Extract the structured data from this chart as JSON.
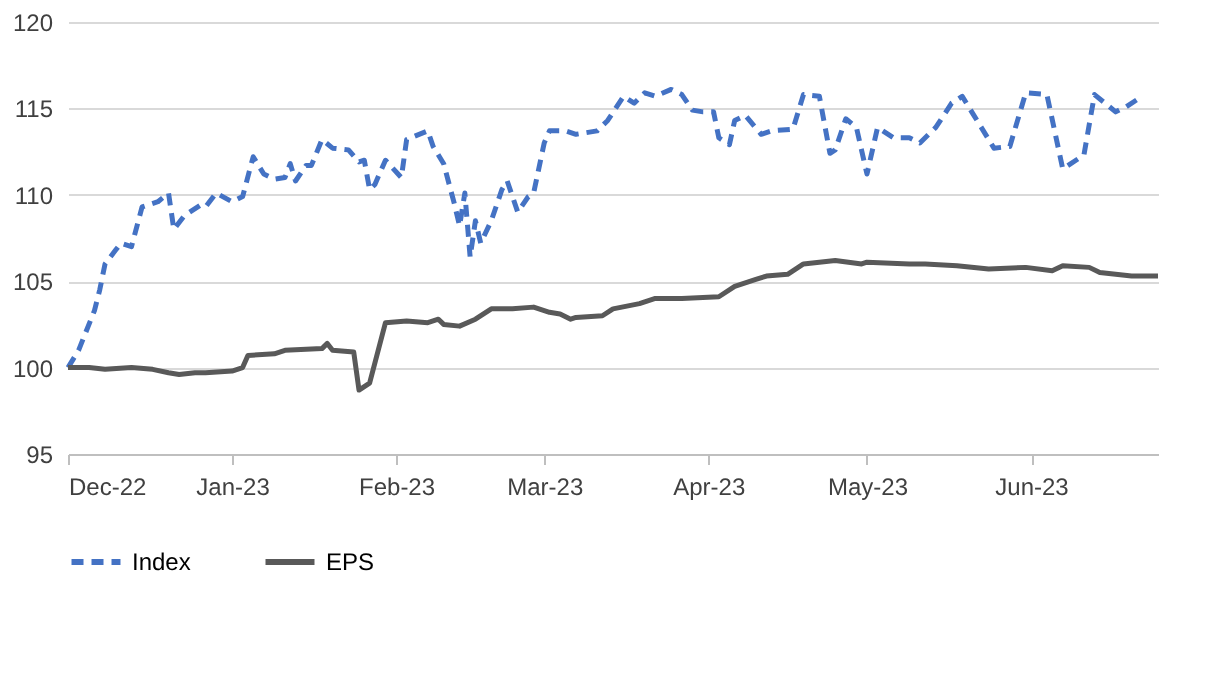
{
  "chart_data": {
    "type": "line",
    "xlim": [
      "2022-12-01",
      "2023-06-25"
    ],
    "xticks": [
      {
        "value": "2022-12-01",
        "label": "Dec-22"
      },
      {
        "value": "2023-01-01",
        "label": "Jan-23"
      },
      {
        "value": "2023-02-01",
        "label": "Feb-23"
      },
      {
        "value": "2023-03-01",
        "label": "Mar-23"
      },
      {
        "value": "2023-04-01",
        "label": "Apr-23"
      },
      {
        "value": "2023-05-01",
        "label": "May-23"
      },
      {
        "value": "2023-06-01",
        "label": "Jun-23"
      }
    ],
    "ylim": [
      95,
      120
    ],
    "yticks": [
      95,
      100,
      105,
      110,
      115,
      120
    ],
    "grid": "y",
    "legend": "bottom",
    "series": [
      {
        "name": "Index",
        "color": "#4472c4",
        "line_style": "dashed",
        "x": [
          "2022-12-01",
          "2022-12-03",
          "2022-12-06",
          "2022-12-07",
          "2022-12-08",
          "2022-12-10",
          "2022-12-11",
          "2022-12-13",
          "2022-12-15",
          "2022-12-18",
          "2022-12-20",
          "2022-12-21",
          "2022-12-23",
          "2022-12-26",
          "2022-12-27",
          "2022-12-29",
          "2023-01-01",
          "2023-01-03",
          "2023-01-05",
          "2023-01-07",
          "2023-01-09",
          "2023-01-11",
          "2023-01-12",
          "2023-01-13",
          "2023-01-15",
          "2023-01-16",
          "2023-01-18",
          "2023-01-20",
          "2023-01-23",
          "2023-01-25",
          "2023-01-26",
          "2023-01-27",
          "2023-01-28",
          "2023-01-30",
          "2023-02-02",
          "2023-02-03",
          "2023-02-07",
          "2023-02-08",
          "2023-02-10",
          "2023-02-12",
          "2023-02-13",
          "2023-02-14",
          "2023-02-15",
          "2023-02-16",
          "2023-02-17",
          "2023-02-19",
          "2023-02-21",
          "2023-02-22",
          "2023-02-24",
          "2023-02-26",
          "2023-02-27",
          "2023-03-01",
          "2023-03-02",
          "2023-03-05",
          "2023-03-07",
          "2023-03-11",
          "2023-03-13",
          "2023-03-16",
          "2023-03-18",
          "2023-03-20",
          "2023-03-22",
          "2023-03-25",
          "2023-03-27",
          "2023-03-29",
          "2023-03-31",
          "2023-04-02",
          "2023-04-03",
          "2023-04-05",
          "2023-04-06",
          "2023-04-08",
          "2023-04-11",
          "2023-04-13",
          "2023-04-17",
          "2023-04-19",
          "2023-04-22",
          "2023-04-24",
          "2023-04-25",
          "2023-04-27",
          "2023-04-29",
          "2023-05-01",
          "2023-05-03",
          "2023-05-06",
          "2023-05-09",
          "2023-05-11",
          "2023-05-14",
          "2023-05-17",
          "2023-05-19",
          "2023-05-21",
          "2023-05-25",
          "2023-05-28",
          "2023-05-31",
          "2023-06-04",
          "2023-06-07",
          "2023-06-11",
          "2023-06-13",
          "2023-06-17",
          "2023-06-19",
          "2023-06-21"
        ],
        "values": [
          100,
          101,
          103.3,
          104.5,
          106,
          106.8,
          107.2,
          107,
          109.3,
          109.6,
          110.1,
          108,
          108.8,
          109.4,
          109.3,
          110.1,
          109.6,
          109.9,
          112.2,
          111.2,
          110.9,
          111,
          111.8,
          110.8,
          111.7,
          111.7,
          113.2,
          112.7,
          112.6,
          111.9,
          112,
          110.3,
          110.6,
          112,
          111,
          113.2,
          113.7,
          112.8,
          111.8,
          109.5,
          108.2,
          110.1,
          106.4,
          108.5,
          107.2,
          108.5,
          110.3,
          110.8,
          109,
          109.9,
          110.1,
          113,
          113.7,
          113.7,
          113.5,
          113.7,
          114.3,
          115.7,
          115.3,
          115.9,
          115.7,
          116.1,
          115.8,
          114.9,
          114.8,
          114.8,
          113.3,
          112.9,
          114.3,
          114.6,
          113.5,
          113.7,
          113.8,
          115.8,
          115.7,
          112.4,
          112.6,
          114.4,
          113.9,
          111.2,
          113.9,
          113.3,
          113.3,
          113,
          113.9,
          115.3,
          115.7,
          114.7,
          112.7,
          112.8,
          115.9,
          115.8,
          111.5,
          112.3,
          115.8,
          114.8,
          115.1,
          115.5
        ]
      },
      {
        "name": "EPS",
        "color": "#595959",
        "line_style": "solid",
        "x": [
          "2022-12-01",
          "2022-12-05",
          "2022-12-08",
          "2022-12-13",
          "2022-12-17",
          "2022-12-20",
          "2022-12-22",
          "2022-12-25",
          "2022-12-27",
          "2023-01-01",
          "2023-01-03",
          "2023-01-04",
          "2023-01-09",
          "2023-01-11",
          "2023-01-18",
          "2023-01-19",
          "2023-01-20",
          "2023-01-24",
          "2023-01-25",
          "2023-01-27",
          "2023-01-30",
          "2023-02-03",
          "2023-02-07",
          "2023-02-09",
          "2023-02-10",
          "2023-02-13",
          "2023-02-16",
          "2023-02-19",
          "2023-02-23",
          "2023-02-27",
          "2023-03-02",
          "2023-03-04",
          "2023-03-06",
          "2023-03-07",
          "2023-03-12",
          "2023-03-14",
          "2023-03-19",
          "2023-03-22",
          "2023-03-27",
          "2023-04-03",
          "2023-04-06",
          "2023-04-10",
          "2023-04-12",
          "2023-04-16",
          "2023-04-19",
          "2023-04-25",
          "2023-04-30",
          "2023-05-01",
          "2023-05-09",
          "2023-05-12",
          "2023-05-18",
          "2023-05-24",
          "2023-05-31",
          "2023-06-05",
          "2023-06-07",
          "2023-06-12",
          "2023-06-14",
          "2023-06-20",
          "2023-06-25"
        ],
        "values": [
          100,
          100,
          99.9,
          100,
          99.9,
          99.7,
          99.6,
          99.7,
          99.7,
          99.8,
          100,
          100.7,
          100.8,
          101,
          101.1,
          101.4,
          101,
          100.9,
          98.7,
          99.1,
          102.6,
          102.7,
          102.6,
          102.8,
          102.5,
          102.4,
          102.8,
          103.4,
          103.4,
          103.5,
          103.2,
          103.1,
          102.8,
          102.9,
          103,
          103.4,
          103.7,
          104,
          104,
          104.1,
          104.7,
          105.1,
          105.3,
          105.4,
          106,
          106.2,
          106,
          106.1,
          106,
          106,
          105.9,
          105.7,
          105.8,
          105.6,
          105.9,
          105.8,
          105.5,
          105.3,
          105.3
        ]
      }
    ]
  }
}
